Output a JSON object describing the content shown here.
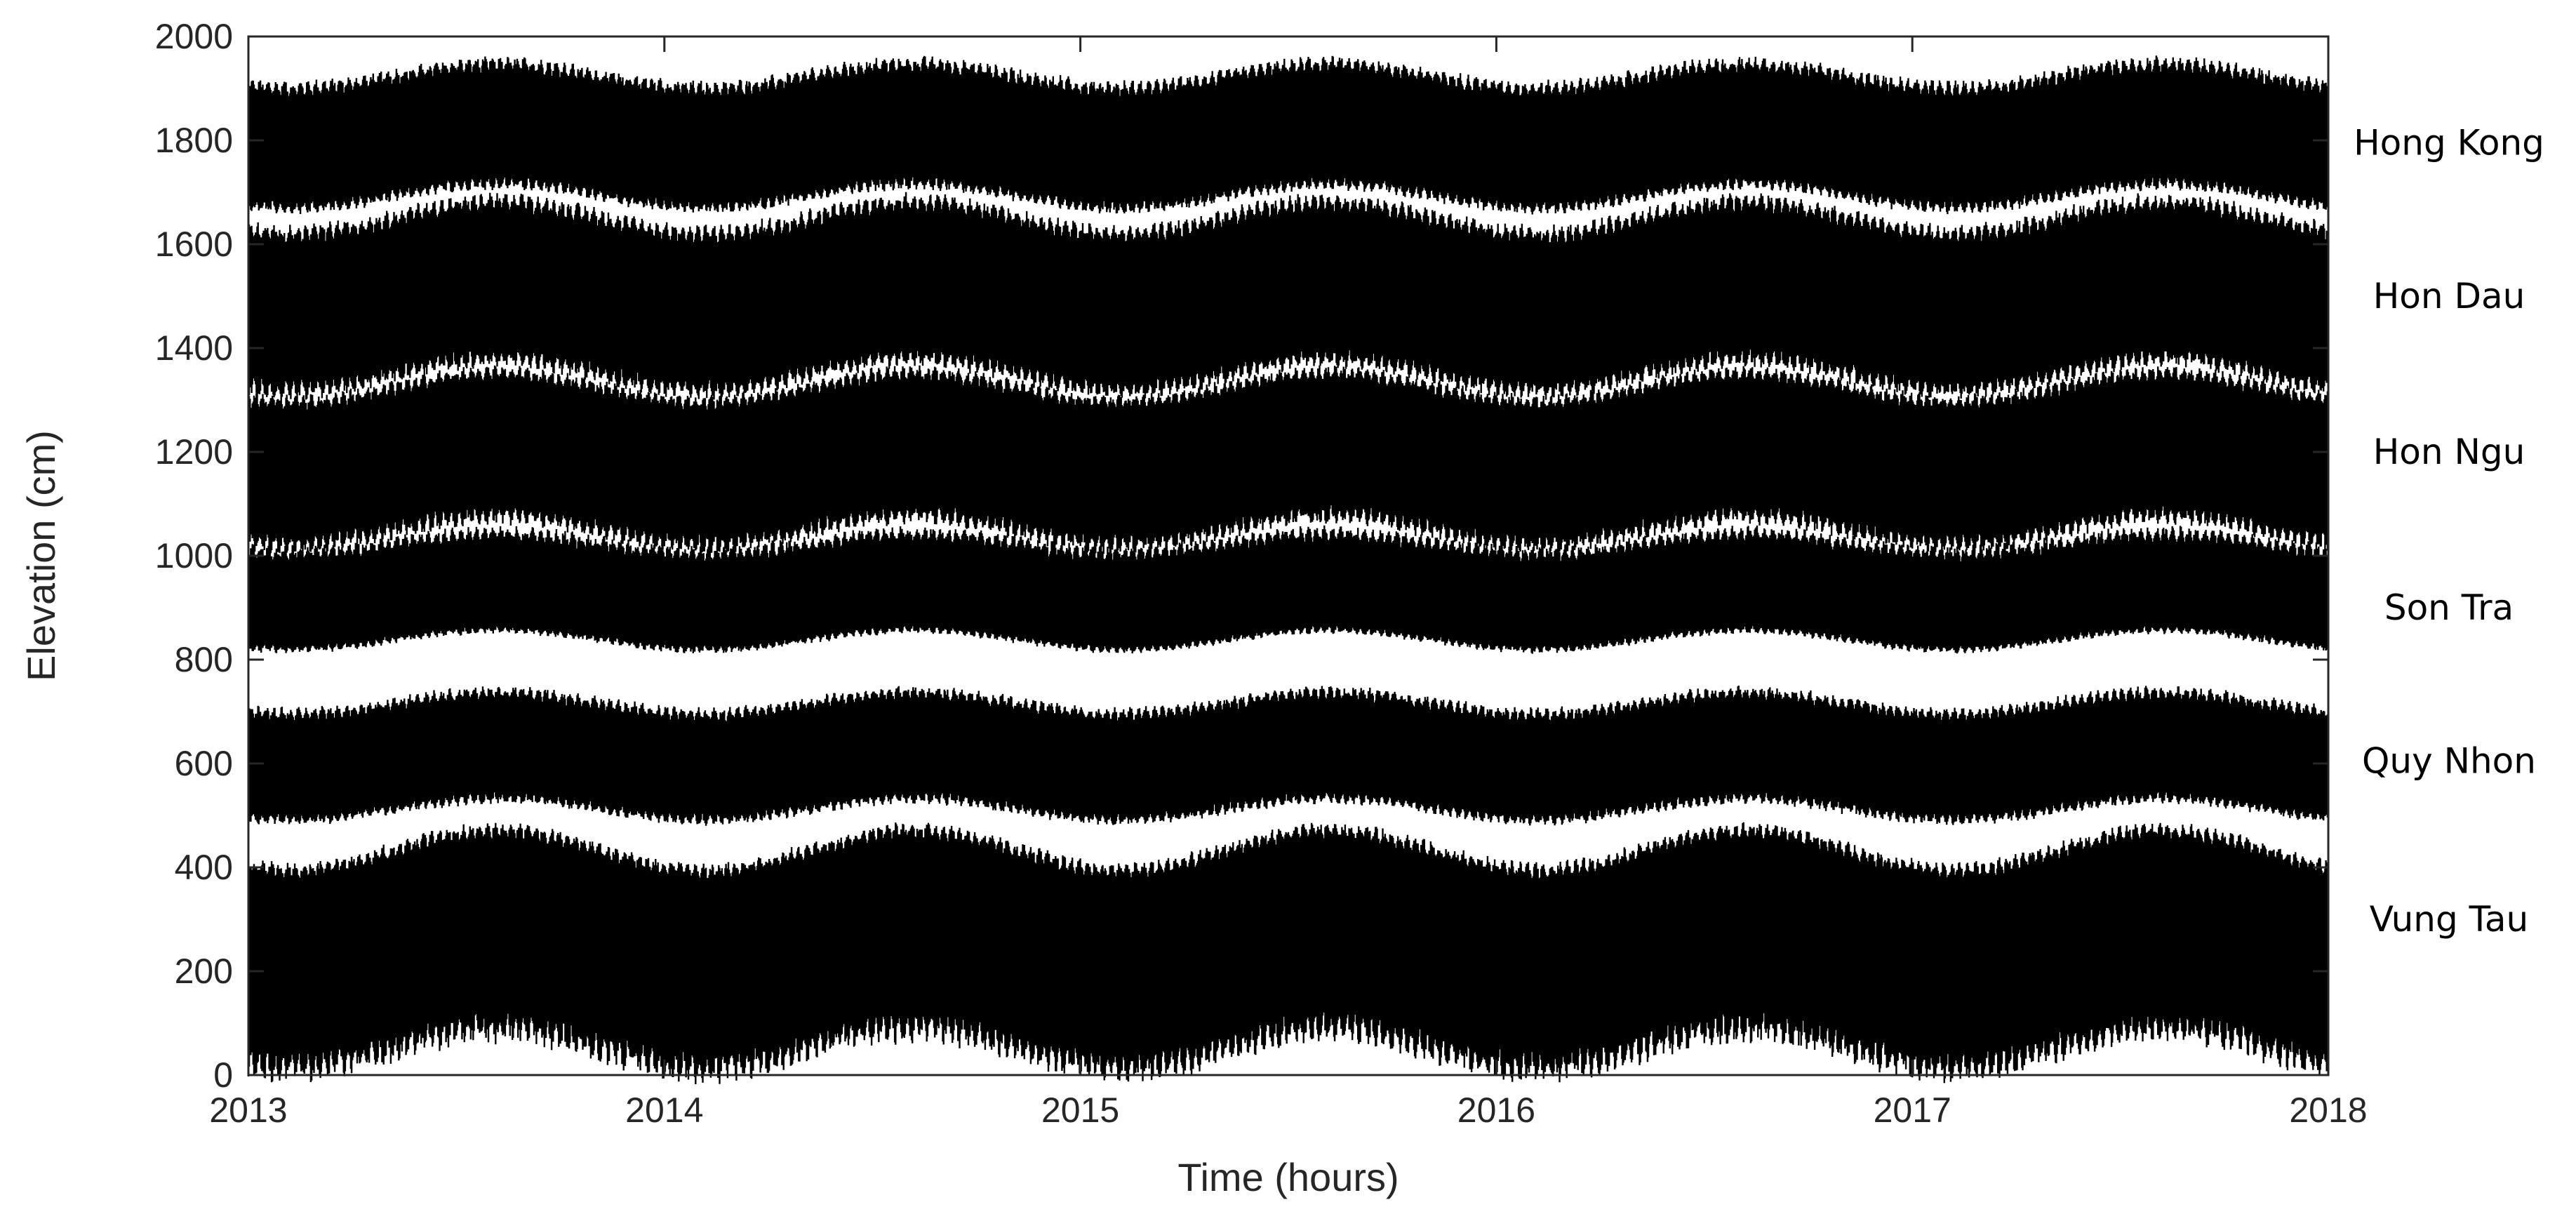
{
  "chart_data": {
    "type": "line",
    "title": "",
    "xlabel": "Time (hours)",
    "ylabel": "Elevation (cm)",
    "xlim": [
      2013,
      2018
    ],
    "ylim": [
      0,
      2000
    ],
    "x_ticks": [
      2013,
      2014,
      2015,
      2016,
      2017,
      2018
    ],
    "y_ticks": [
      0,
      200,
      400,
      600,
      800,
      1000,
      1200,
      1400,
      1600,
      1800,
      2000
    ],
    "grid": false,
    "legend": "none",
    "line_color": "#000000",
    "series": [
      {
        "name": "Hong Kong",
        "mean_cm": 1795,
        "envelope_cm": [
          1680,
          1940
        ]
      },
      {
        "name": "Hon Dau",
        "mean_cm": 1500,
        "envelope_cm": [
          1330,
          1670
        ]
      },
      {
        "name": "Hon Ngu",
        "mean_cm": 1200,
        "envelope_cm": [
          1030,
          1340
        ]
      },
      {
        "name": "Son Tra",
        "mean_cm": 900,
        "envelope_cm": [
          830,
          1040
        ]
      },
      {
        "name": "Quy Nhon",
        "mean_cm": 605,
        "envelope_cm": [
          500,
          730
        ]
      },
      {
        "name": "Vung Tau",
        "mean_cm": 300,
        "envelope_cm": [
          20,
          450
        ]
      }
    ]
  }
}
